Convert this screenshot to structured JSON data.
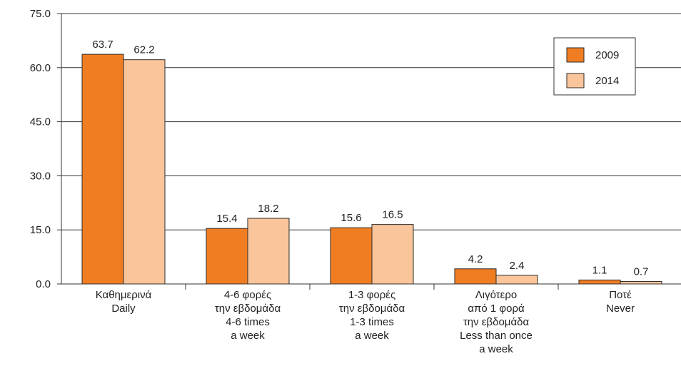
{
  "chart_data": {
    "type": "bar",
    "title": "",
    "xlabel": "",
    "ylabel": "",
    "ylim": [
      0,
      75
    ],
    "yticks": [
      "0.0",
      "15.0",
      "30.0",
      "45.0",
      "60.0",
      "75.0"
    ],
    "ytick_values": [
      0,
      15,
      30,
      45,
      60,
      75
    ],
    "grid": true,
    "legend_position": "top-right",
    "categories": [
      [
        "Καθημερινά",
        "Daily"
      ],
      [
        "4-6 φορές",
        "την εβδομάδα",
        "4-6 times",
        "a week"
      ],
      [
        "1-3 φορές",
        "την εβδομάδα",
        "1-3 times",
        "a week"
      ],
      [
        "Λιγότερο",
        "από 1 φορά",
        "την εβδομάδα",
        "Less than once",
        "a week"
      ],
      [
        "Ποτέ",
        "Never"
      ]
    ],
    "series": [
      {
        "name": "2009",
        "color": "#f07d22",
        "values": [
          63.7,
          15.4,
          15.6,
          4.2,
          1.1
        ],
        "labels": [
          "63.7",
          "15.4",
          "15.6",
          "4.2",
          "1.1"
        ]
      },
      {
        "name": "2014",
        "color": "#fbc59b",
        "values": [
          62.2,
          18.2,
          16.5,
          2.4,
          0.7
        ],
        "labels": [
          "62.2",
          "18.2",
          "16.5",
          "2.4",
          "0.7"
        ]
      }
    ]
  }
}
